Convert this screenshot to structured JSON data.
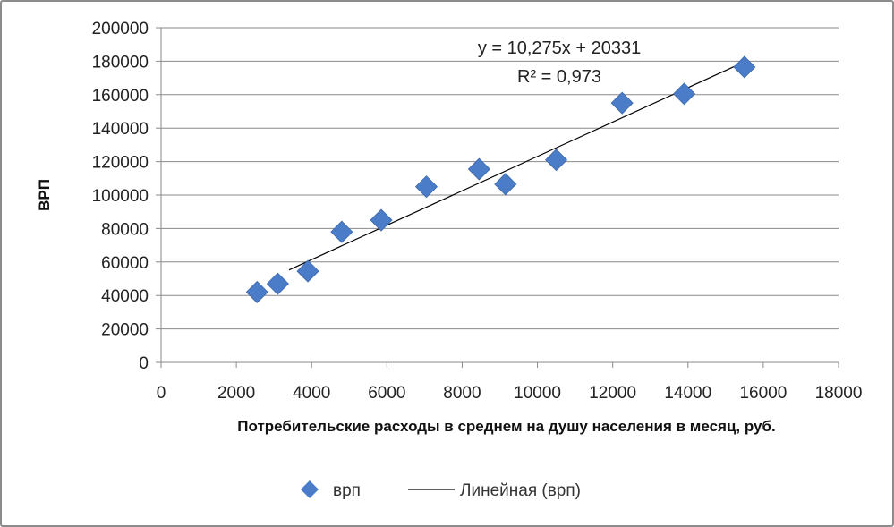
{
  "chart_data": {
    "type": "scatter",
    "title": "",
    "xlabel": "Потребительские расходы в среднем на душу населения в месяц, руб.",
    "ylabel": "ВРП",
    "xlim": [
      0,
      18000
    ],
    "ylim": [
      0,
      200000
    ],
    "x_ticks": [
      0,
      2000,
      4000,
      6000,
      8000,
      10000,
      12000,
      14000,
      16000,
      18000
    ],
    "y_ticks": [
      0,
      20000,
      40000,
      60000,
      80000,
      100000,
      120000,
      140000,
      160000,
      180000,
      200000
    ],
    "grid": "horizontal",
    "legend_position": "bottom",
    "series": [
      {
        "name": "врп",
        "color": "#4a7cc7",
        "marker": "diamond",
        "points": [
          {
            "x": 2550,
            "y": 42000
          },
          {
            "x": 3100,
            "y": 47000
          },
          {
            "x": 3900,
            "y": 54500
          },
          {
            "x": 4800,
            "y": 78000
          },
          {
            "x": 5850,
            "y": 85000
          },
          {
            "x": 7050,
            "y": 105000
          },
          {
            "x": 8450,
            "y": 115500
          },
          {
            "x": 9150,
            "y": 106500
          },
          {
            "x": 10500,
            "y": 121000
          },
          {
            "x": 12250,
            "y": 155000
          },
          {
            "x": 13900,
            "y": 160500
          },
          {
            "x": 15500,
            "y": 176500
          }
        ]
      }
    ],
    "trendline": {
      "name": "Линейная (врп)",
      "type": "linear",
      "slope": 10.275,
      "intercept": 20331,
      "x_range": [
        3400,
        15500
      ],
      "equation": "y = 10,275x + 20331",
      "r2": "R² = 0,973",
      "color": "#000000"
    }
  }
}
